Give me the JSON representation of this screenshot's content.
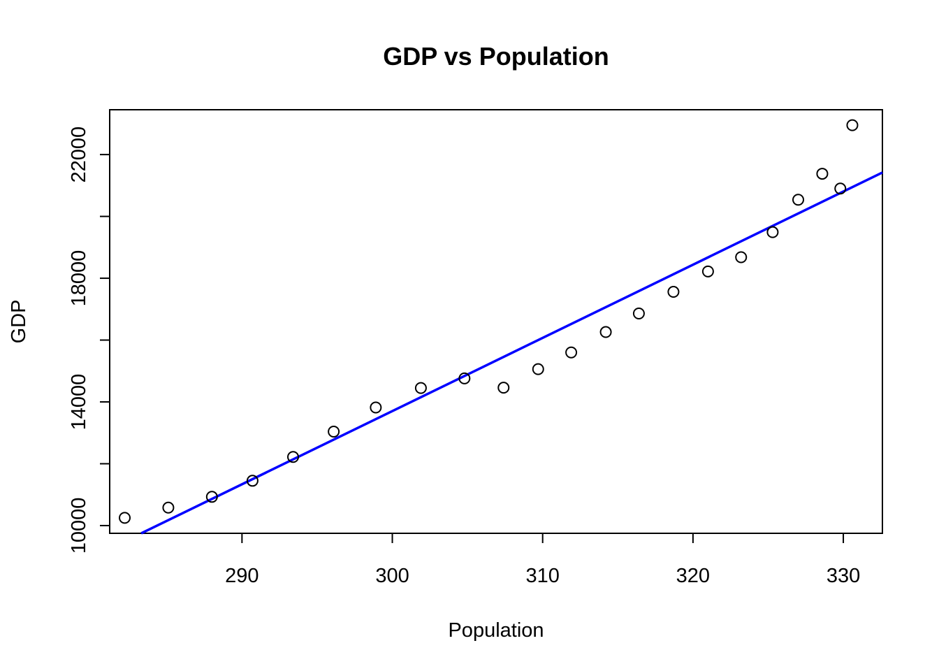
{
  "chart_data": {
    "type": "scatter",
    "title": "GDP vs Population",
    "xlabel": "Population",
    "ylabel": "GDP",
    "xlim": [
      281.2,
      332.6
    ],
    "ylim": [
      9750,
      23450
    ],
    "x_ticks": [
      290,
      300,
      310,
      320,
      330
    ],
    "y_ticks": [
      10000,
      12000,
      14000,
      16000,
      18000,
      20000,
      22000
    ],
    "y_tick_labels": [
      "10000",
      "",
      "14000",
      "",
      "18000",
      "",
      "22000"
    ],
    "grid": false,
    "legend": "none",
    "points": [
      {
        "x": 282.2,
        "y": 10250
      },
      {
        "x": 285.1,
        "y": 10580
      },
      {
        "x": 288.0,
        "y": 10930
      },
      {
        "x": 290.7,
        "y": 11450
      },
      {
        "x": 293.4,
        "y": 12220
      },
      {
        "x": 296.1,
        "y": 13040
      },
      {
        "x": 298.9,
        "y": 13820
      },
      {
        "x": 301.9,
        "y": 14450
      },
      {
        "x": 304.8,
        "y": 14760
      },
      {
        "x": 307.4,
        "y": 14460
      },
      {
        "x": 309.7,
        "y": 15060
      },
      {
        "x": 311.9,
        "y": 15600
      },
      {
        "x": 314.2,
        "y": 16260
      },
      {
        "x": 316.4,
        "y": 16860
      },
      {
        "x": 318.7,
        "y": 17560
      },
      {
        "x": 321.0,
        "y": 18220
      },
      {
        "x": 323.2,
        "y": 18680
      },
      {
        "x": 325.3,
        "y": 19490
      },
      {
        "x": 327.0,
        "y": 20540
      },
      {
        "x": 328.6,
        "y": 21380
      },
      {
        "x": 329.8,
        "y": 20900
      },
      {
        "x": 330.6,
        "y": 22950
      }
    ],
    "fit_line": {
      "color": "#0000ff",
      "x": [
        283.3,
        332.6
      ],
      "y": [
        9750,
        21420
      ]
    },
    "point_color": "#000000"
  }
}
